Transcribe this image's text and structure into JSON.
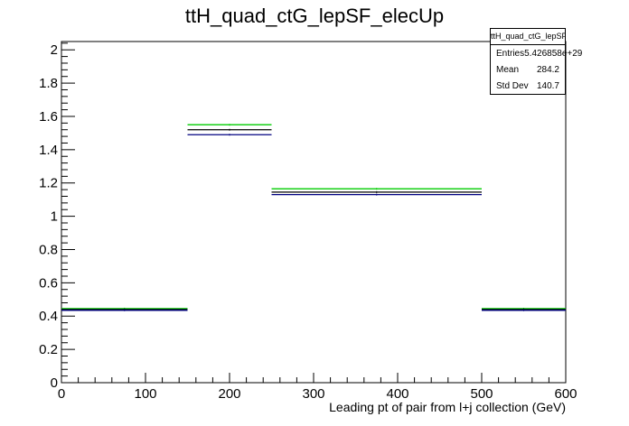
{
  "chart_data": {
    "type": "histogram",
    "title": "ttH_quad_ctG_lepSF_elecUp",
    "xlabel": "Leading pt of pair from l+j collection (GeV)",
    "ylabel": "",
    "xlim": [
      0,
      600
    ],
    "ylim": [
      0,
      2.05
    ],
    "x_ticks": [
      "0",
      "100",
      "200",
      "300",
      "400",
      "500",
      "600"
    ],
    "y_ticks": [
      "0",
      "0.2",
      "0.4",
      "0.6",
      "0.8",
      "1",
      "1.2",
      "1.4",
      "1.6",
      "1.8",
      "2"
    ],
    "bins": [
      [
        0,
        150
      ],
      [
        150,
        250
      ],
      [
        250,
        500
      ],
      [
        500,
        600
      ]
    ],
    "series": [
      {
        "color": "#00cc00",
        "values": [
          0.445,
          1.55,
          1.165,
          0.445
        ]
      },
      {
        "color": "#000000",
        "values": [
          0.44,
          1.52,
          1.145,
          0.44
        ]
      },
      {
        "color": "#000080",
        "values": [
          0.435,
          1.49,
          1.13,
          0.435
        ]
      }
    ],
    "grid": false
  },
  "stats_box": {
    "title": "ttH_quad_ctG_lepSF_elecUp",
    "rows": [
      {
        "label": "Entries",
        "value": "5.426858e+29"
      },
      {
        "label": "Mean",
        "value": "284.2"
      },
      {
        "label": "Std Dev",
        "value": "140.7"
      }
    ]
  }
}
